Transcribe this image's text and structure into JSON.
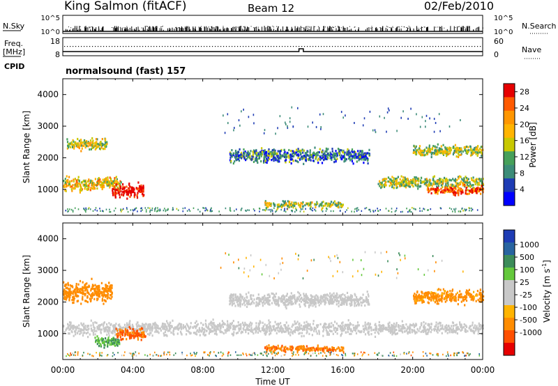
{
  "header": {
    "station": "King Salmon (fitACF)",
    "beam": "Beam 12",
    "date": "02/Feb/2010"
  },
  "noise_panel": {
    "left_label": "N.Sky",
    "left_ticks": [
      "10^5",
      "10^0"
    ],
    "right_label": "N.Search",
    "right_ticks": [
      "10^5",
      "10^0"
    ]
  },
  "freq_panel": {
    "left_label_1": "Freq.",
    "left_label_2": "[MHz]",
    "left_ticks": [
      "18",
      "8"
    ],
    "right_label": "Nave",
    "right_ticks": [
      "60",
      "0"
    ]
  },
  "cpid": {
    "label": "CPID",
    "value": "normalsound (fast) 157"
  },
  "x_axis": {
    "label": "Time UT",
    "ticks": [
      "00:00",
      "04:00",
      "08:00",
      "12:00",
      "16:00",
      "20:00",
      "00:00"
    ]
  },
  "power_panel": {
    "ylabel": "Slant Range [km]",
    "yticks": [
      "1000",
      "2000",
      "3000",
      "4000"
    ],
    "colorbar_label": "Power [dB]",
    "colorbar_ticks": [
      "28",
      "24",
      "20",
      "16",
      "12",
      "8",
      "4"
    ],
    "colorbar_colors": [
      "#e60000",
      "#ff5a00",
      "#ff9600",
      "#ffb400",
      "#c8c800",
      "#46a05a",
      "#3c8c78",
      "#1e3cb4",
      "#0000ff"
    ]
  },
  "velocity_panel": {
    "ylabel": "Slant Range [km]",
    "yticks": [
      "1000",
      "2000",
      "3000",
      "4000"
    ],
    "colorbar_label": "Velocity [m s",
    "colorbar_label_sup": "-1",
    "colorbar_label_end": "]",
    "colorbar_ticks": [
      "1000",
      "500",
      "100",
      "25",
      "-25",
      "-100",
      "-500",
      "-1000"
    ],
    "colorbar_colors": [
      "#1e3cb4",
      "#2864a0",
      "#3c8c5a",
      "#64c83c",
      "#c8c8c8",
      "#c8c8c8",
      "#ffb400",
      "#ff8c00",
      "#ff5000",
      "#e60000"
    ]
  },
  "chart_data": [
    {
      "type": "heatmap",
      "title": "Power",
      "xlabel": "Time UT",
      "ylabel": "Slant Range [km]",
      "xlim": [
        0,
        24
      ],
      "ylim": [
        180,
        4500
      ],
      "colorbar": {
        "label": "Power [dB]",
        "range": [
          0,
          30
        ]
      },
      "features": [
        {
          "name": "near-range band",
          "t_start": 0.0,
          "t_end": 3.3,
          "range_km": [
            900,
            1500
          ],
          "power_dB": 18
        },
        {
          "name": "early far band",
          "t_start": 0.2,
          "t_end": 2.5,
          "range_km": [
            2200,
            2700
          ],
          "power_dB": 16
        },
        {
          "name": "strong blob",
          "t_start": 2.8,
          "t_end": 4.6,
          "range_km": [
            700,
            1300
          ],
          "power_dB": 30
        },
        {
          "name": "mid-day far band",
          "t_start": 9.5,
          "t_end": 17.5,
          "range_km": [
            1800,
            2400
          ],
          "power_dB": 8
        },
        {
          "name": "near-range E layer",
          "t_start": 11.5,
          "t_end": 16.0,
          "range_km": [
            400,
            700
          ],
          "power_dB": 14
        },
        {
          "name": "evening band",
          "t_start": 18.0,
          "t_end": 24.0,
          "range_km": [
            1000,
            1500
          ],
          "power_dB": 14
        },
        {
          "name": "late strong band",
          "t_start": 20.8,
          "t_end": 24.0,
          "range_km": [
            800,
            1200
          ],
          "power_dB": 26
        },
        {
          "name": "late far band",
          "t_start": 20.0,
          "t_end": 24.0,
          "range_km": [
            2000,
            2500
          ],
          "power_dB": 14
        }
      ]
    },
    {
      "type": "heatmap",
      "title": "Velocity",
      "xlabel": "Time UT",
      "ylabel": "Slant Range [km]",
      "xlim": [
        0,
        24
      ],
      "ylim": [
        180,
        4500
      ],
      "colorbar": {
        "label": "Velocity [m s-1]",
        "range": [
          -1000,
          1000
        ]
      },
      "features": [
        {
          "name": "early mixed band",
          "t_start": 0.0,
          "t_end": 2.8,
          "range_km": [
            1900,
            2800
          ],
          "velocity": -150
        },
        {
          "name": "ground scatter band",
          "t_start": 0.0,
          "t_end": 24.0,
          "range_km": [
            900,
            1500
          ],
          "velocity": 0
        },
        {
          "name": "negative blob",
          "t_start": 3.0,
          "t_end": 4.7,
          "range_km": [
            700,
            1300
          ],
          "velocity": -300
        },
        {
          "name": "positive patch",
          "t_start": 1.8,
          "t_end": 3.2,
          "range_km": [
            550,
            1000
          ],
          "velocity": 60
        },
        {
          "name": "mid-day ground scatter",
          "t_start": 9.5,
          "t_end": 17.5,
          "range_km": [
            1800,
            2400
          ],
          "velocity": 0
        },
        {
          "name": "E layer",
          "t_start": 11.5,
          "t_end": 16.0,
          "range_km": [
            400,
            700
          ],
          "velocity": -200
        },
        {
          "name": "late mixed band",
          "t_start": 20.0,
          "t_end": 24.0,
          "range_km": [
            1900,
            2500
          ],
          "velocity": -100
        }
      ]
    }
  ]
}
